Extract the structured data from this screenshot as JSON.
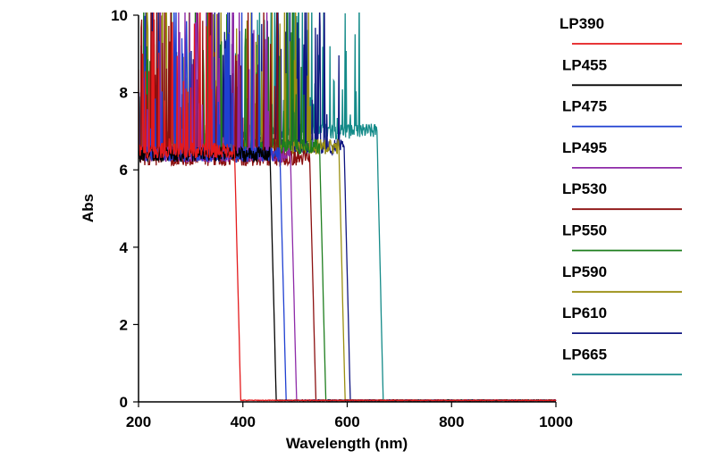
{
  "chart_data": {
    "type": "line",
    "xlabel": "Wavelength (nm)",
    "ylabel": "Abs",
    "xlim": [
      200,
      1000
    ],
    "ylim": [
      0,
      10
    ],
    "xticks": [
      200,
      400,
      600,
      800,
      1000
    ],
    "yticks": [
      0,
      2,
      4,
      6,
      8,
      10
    ],
    "grid": false,
    "legend_position": "right",
    "series": [
      {
        "name": "LP390",
        "color": "#e41a1c",
        "cutoff": 390,
        "plateau": 6.5,
        "noise_max": 350,
        "plateau_start": 200
      },
      {
        "name": "LP455",
        "color": "#000000",
        "cutoff": 458,
        "plateau": 6.4,
        "noise_max": 0,
        "plateau_start": 200
      },
      {
        "name": "LP475",
        "color": "#1f3fd1",
        "cutoff": 477,
        "plateau": 6.4,
        "noise_max": 440,
        "plateau_start": 200
      },
      {
        "name": "LP495",
        "color": "#8e2aa8",
        "cutoff": 497,
        "plateau": 6.4,
        "noise_max": 460,
        "plateau_start": 200
      },
      {
        "name": "LP530",
        "color": "#8b0f0f",
        "cutoff": 534,
        "plateau": 6.3,
        "noise_max": 490,
        "plateau_start": 200
      },
      {
        "name": "LP550",
        "color": "#1e7e1e",
        "cutoff": 553,
        "plateau": 6.6,
        "noise_max": 520,
        "plateau_start": 200
      },
      {
        "name": "LP590",
        "color": "#9a8f12",
        "cutoff": 590,
        "plateau": 6.6,
        "noise_max": 560,
        "plateau_start": 200
      },
      {
        "name": "LP610",
        "color": "#0f1580",
        "cutoff": 600,
        "plateau": 6.6,
        "noise_max": 600,
        "plateau_start": 200
      },
      {
        "name": "LP665",
        "color": "#138a88",
        "cutoff": 663,
        "plateau": 7.0,
        "noise_max": 625,
        "plateau_start": 350
      }
    ]
  }
}
